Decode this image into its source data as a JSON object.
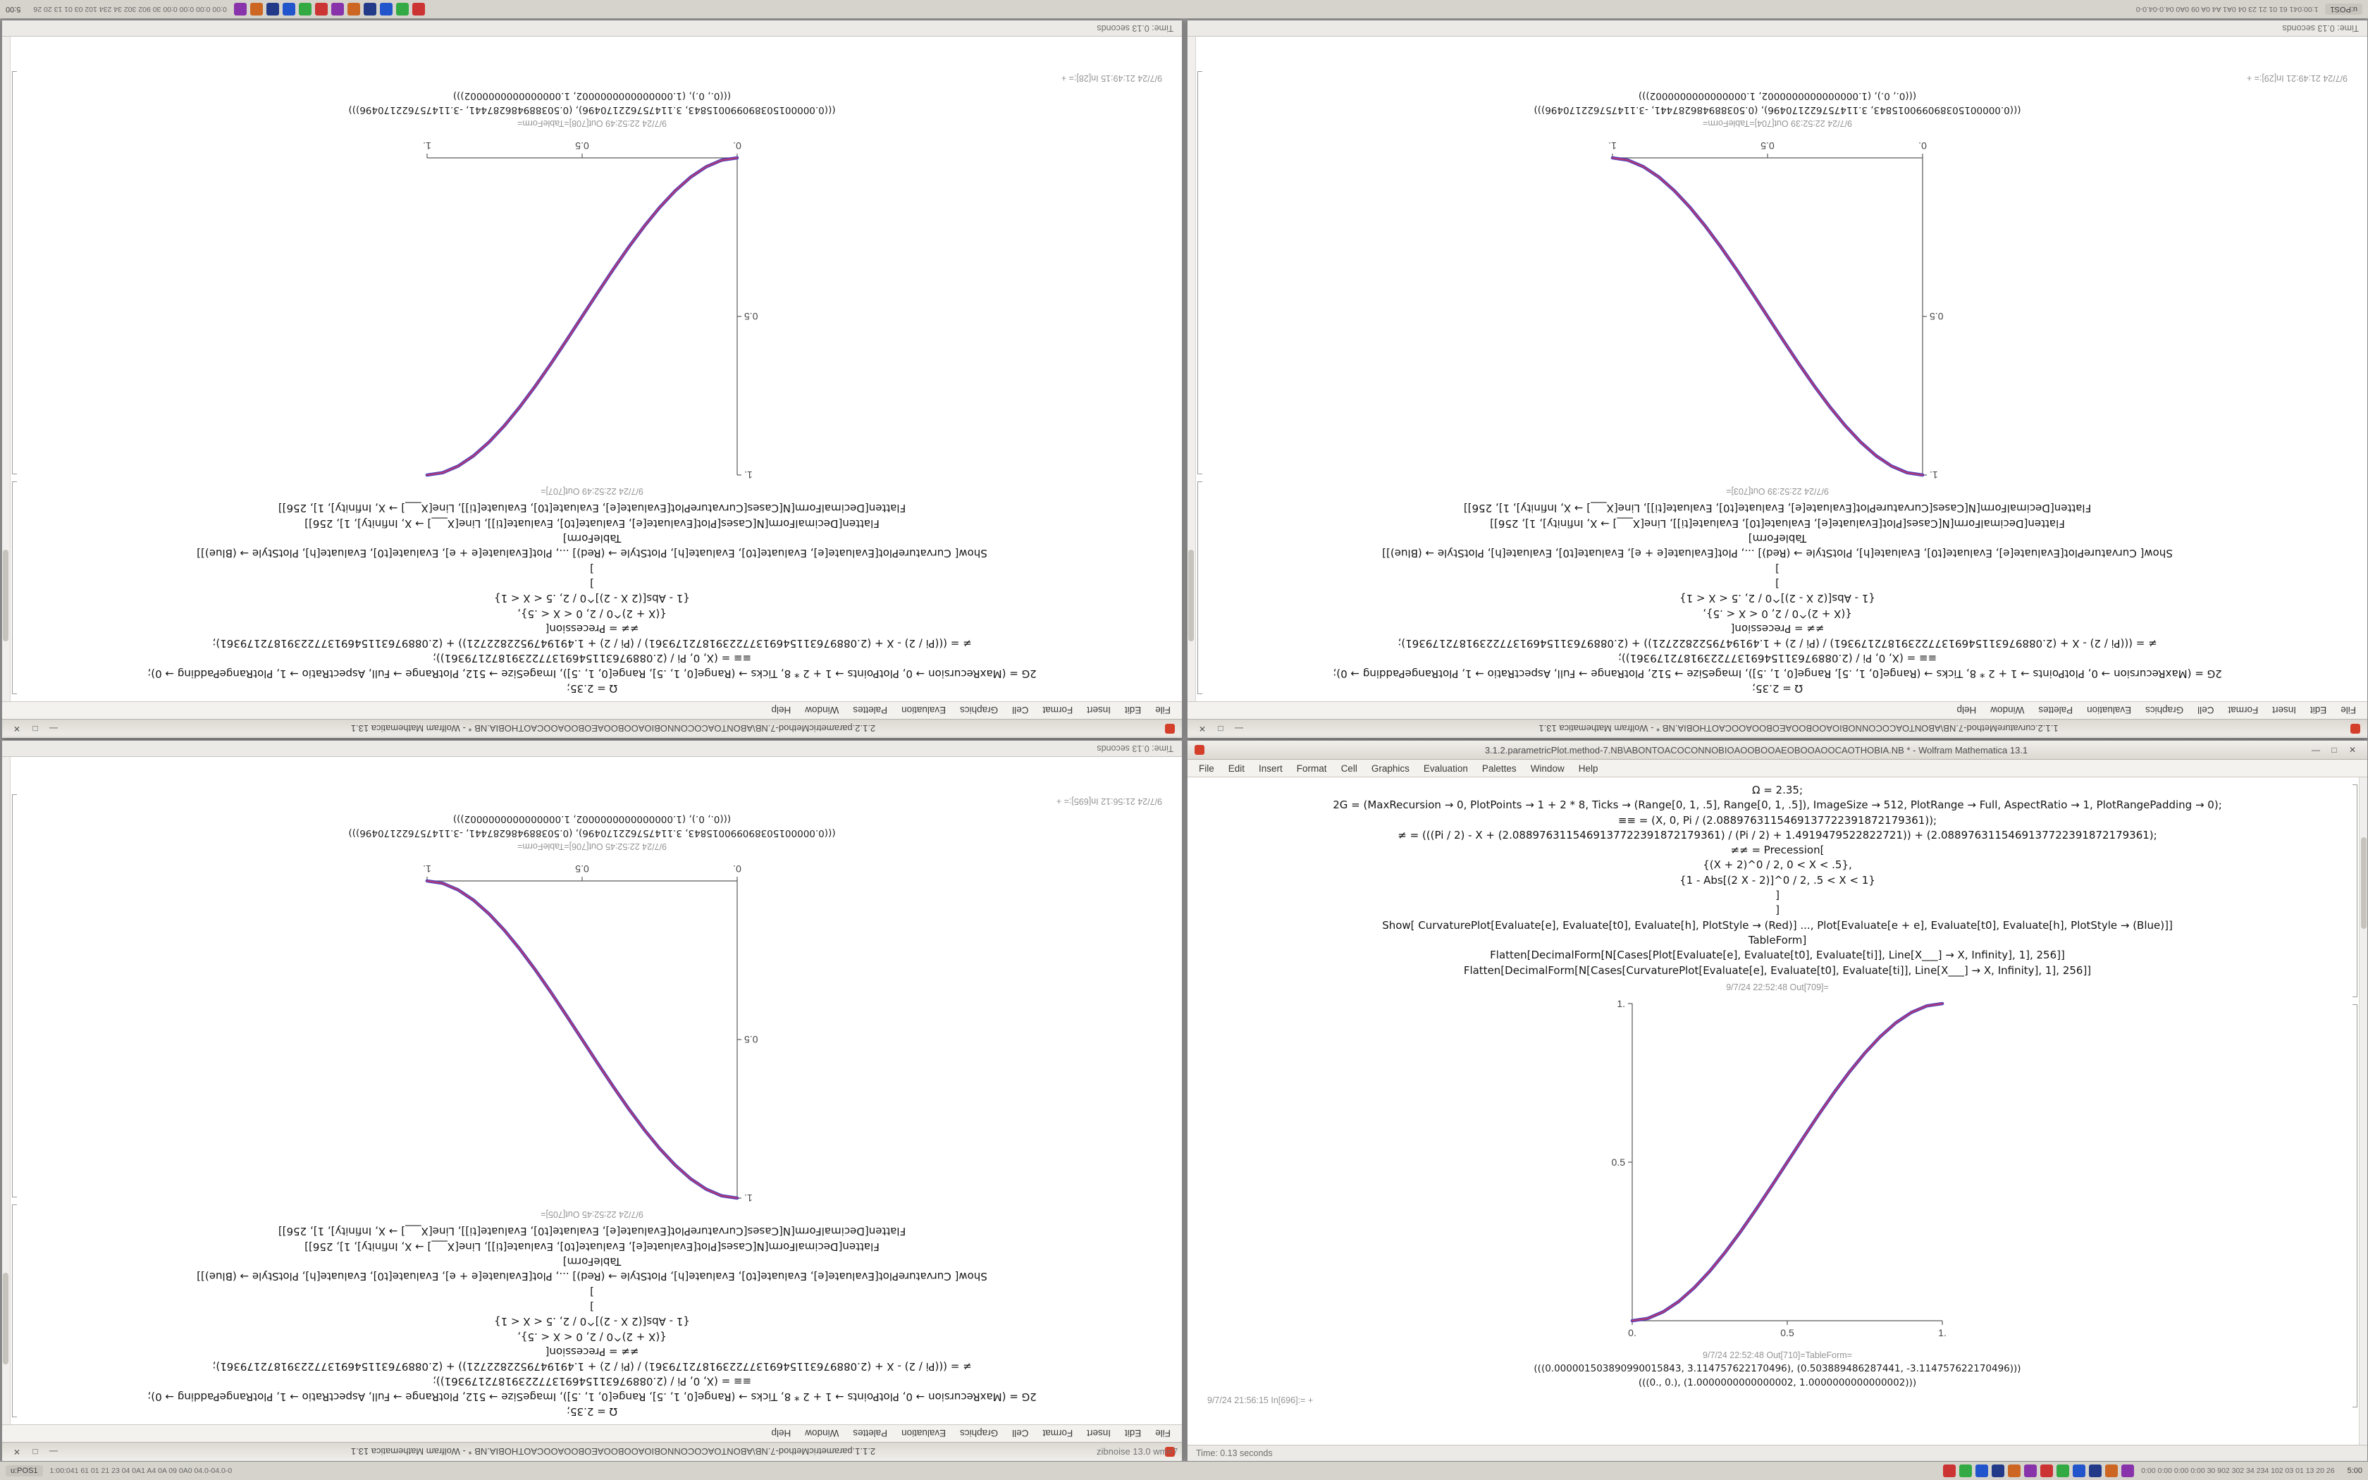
{
  "desktop": {
    "background": "#9c9c9c"
  },
  "window_chrome": {
    "minimize_glyph": "—",
    "maximize_glyph": "□",
    "close_glyph": "✕",
    "accent": "#d33f2a"
  },
  "menu_items": [
    "File",
    "Edit",
    "Insert",
    "Format",
    "Cell",
    "Graphics",
    "Evaluation",
    "Palettes",
    "Window",
    "Help"
  ],
  "taskbar": {
    "start_label": "u:POS1",
    "left_text": "1:00:041 61 01 21 23 04 0A1 A4 0A 09 0A0 04.0-04.0-0",
    "icon_colors": [
      "#cc3333",
      "#33aa44",
      "#2255cc",
      "#223a88",
      "#cc6622",
      "#8833aa",
      "#cc3333",
      "#33aa44",
      "#2255cc",
      "#223a88",
      "#cc6622",
      "#8833aa"
    ],
    "tray_text": "0:00 0:00 0:00 0:00 30 902 302 34 234 102 03 01 13 20 26",
    "clock": "5:00"
  },
  "status_strip": {
    "kernel_label": "zibnoise 13.0 wm=7",
    "time_label": "Time: 0.13 seconds"
  },
  "windows": [
    {
      "id": "top-left",
      "title": "2.1.2.parametricMethod-7.NB\\ABONTOACOCONNOBIOAOOBOOAEOBOOAOOCAOTHOBIA.NB * - Wolfram Mathematica 13.1",
      "code_lines": [
        "Ω = 2.35;",
        "2G = (MaxRecursion → 0, PlotPoints → 1 + 2 * 8, Ticks → (Range[0, 1, .5], Range[0, 1, .5]), ImageSize → 512, PlotRange → Full, AspectRatio → 1, PlotRangePadding → 0);",
        "≡≡ = (X, 0, Pi / (2.0889763115469137722391872179361));",
        "≠ = (((Pi / 2) - X + (2.0889763115469137722391872179361) / (Pi / 2) + 1.4919479522822721)) + (2.0889763115469137722391872179361);",
        "≠≠ = Precession[",
        "{(X + 2)^0 / 2, 0 < X < .5},",
        "{1 - Abs[(2 X - 2)]^0 / 2, .5 < X < 1}",
        "]",
        "]",
        "Show[  CurvaturePlot[Evaluate[e], Evaluate[t0], Evaluate[h],  PlotStyle → (Red)] ...,  Plot[Evaluate[e + e], Evaluate[t0], Evaluate[h],  PlotStyle → (Blue)]]",
        "TableForm]",
        "Flatten[DecimalForm[N[Cases[Plot[Evaluate[e], Evaluate[t0], Evaluate[ti]], Line[X___] → X, Infinity], 1], 256]]",
        "Flatten[DecimalForm[N[Cases[CurvaturePlot[Evaluate[e], Evaluate[t0], Evaluate[ti]], Line[X___] → X, Infinity], 1], 256]]"
      ],
      "out_plot_label": "9/7/24 22:52:49 Out[707]=",
      "out_table_label": "9/7/24 22:52:49 Out[708]=TableForm=",
      "out_values": [
        "(((0.000001503890990015843, 3.114757622170496), (0.503889486287441, -3.114757622170496)))",
        "(((0., 0.), (1.0000000000000002, 1.0000000000000002)))"
      ],
      "trailing_label": "9/7/24 21:49:15 In[28]:=   +",
      "status_text": "Time: 0.13 seconds"
    },
    {
      "id": "top-right",
      "title": "1.1.2.curvatureMethod-7.NB\\ABONTOACOCONNOBIOAOOBOOAEOBOOAOOCAOTHOBIA.NB * - Wolfram Mathematica 13.1",
      "code_lines": [
        "Ω = 2.35;",
        "2G = (MaxRecursion → 0, PlotPoints → 1 + 2 * 8, Ticks → (Range[0, 1, .5], Range[0, 1, .5]), ImageSize → 512, PlotRange → Full, AspectRatio → 1, PlotRangePadding → 0);",
        "≡≡ = (X, 0, Pi / (2.0889763115469137722391872179361));",
        "≠ = (((Pi / 2) - X + (2.0889763115469137722391872179361) / (Pi / 2) + 1.4919479522822721)) + (2.0889763115469137722391872179361);",
        "≠≠ = Precession[",
        "{(X + 2)^0 / 2, 0 < X < .5},",
        "{1 - Abs[(2 X - 2)]^0 / 2, .5 < X < 1}",
        "]",
        "]",
        "Show[  CurvaturePlot[Evaluate[e], Evaluate[t0], Evaluate[h],  PlotStyle → (Red)] ...,  Plot[Evaluate[e + e], Evaluate[t0], Evaluate[h],  PlotStyle → (Blue)]]",
        "TableForm]",
        "Flatten[DecimalForm[N[Cases[Plot[Evaluate[e], Evaluate[t0], Evaluate[ti]], Line[X___] → X, Infinity], 1], 256]]",
        "Flatten[DecimalForm[N[Cases[CurvaturePlot[Evaluate[e], Evaluate[t0], Evaluate[ti]], Line[X___] → X, Infinity], 1], 256]]"
      ],
      "out_plot_label": "9/7/24 22:52:39 Out[703]=",
      "out_table_label": "9/7/24 22:52:39 Out[704]=TableForm=",
      "out_values": [
        "(((0.000001503890990015843, 3.114757622170496), (0.503889486287441, -3.114757622170496)))",
        "(((0., 0.), (1.0000000000000002, 1.0000000000000002)))"
      ],
      "trailing_label": "9/7/24 21:49:21 In[29]:=   +",
      "status_text": "Time: 0.13 seconds"
    },
    {
      "id": "bottom-left",
      "title": "2.1.1.parametricMethod-7.NB\\ABONTOACOCONNOBIOAOOBOOAEOBOOAOOCAOTHOBIA.NB * - Wolfram Mathematica 13.1",
      "code_lines": [
        "Ω = 2.35;",
        "2G = (MaxRecursion → 0, PlotPoints → 1 + 2 * 8, Ticks → (Range[0, 1, .5], Range[0, 1, .5]), ImageSize → 512, PlotRange → Full, AspectRatio → 1, PlotRangePadding → 0);",
        "≡≡ = (X, 0, Pi / (2.0889763115469137722391872179361));",
        "≠ = (((Pi / 2) - X + (2.0889763115469137722391872179361) / (Pi / 2) + 1.4919479522822721)) + (2.0889763115469137722391872179361);",
        "≠≠ = Precession[",
        "{(X + 2)^0 / 2, 0 < X < .5},",
        "{1 - Abs[(2 X - 2)]^0 / 2, .5 < X < 1}",
        "]",
        "]",
        "Show[  CurvaturePlot[Evaluate[e], Evaluate[t0], Evaluate[h],  PlotStyle → (Red)] ...,  Plot[Evaluate[e + e], Evaluate[t0], Evaluate[h],  PlotStyle → (Blue)]]",
        "TableForm]",
        "Flatten[DecimalForm[N[Cases[Plot[Evaluate[e], Evaluate[t0], Evaluate[ti]], Line[X___] → X, Infinity], 1], 256]]",
        "Flatten[DecimalForm[N[Cases[CurvaturePlot[Evaluate[e], Evaluate[t0], Evaluate[ti]], Line[X___] → X, Infinity], 1], 256]]"
      ],
      "out_plot_label": "9/7/24 22:52:45 Out[705]=",
      "out_table_label": "9/7/24 22:52:45 Out[706]=TableForm=",
      "out_values": [
        "(((0.000001503890990015843, 3.114757622170496), (0.503889486287441, -3.114757622170496)))",
        "(((0., 0.), (1.0000000000000002, 1.0000000000000002)))"
      ],
      "trailing_label": "9/7/24 21:56:12 In[695]:=   +",
      "status_text": "Time: 0.13 seconds"
    },
    {
      "id": "bottom-right",
      "title": "3.1.2.parametricPlot.method-7.NB\\ABONTOACOCONNOBIOAOOBOOAEOBOOAOOCAOTHOBIA.NB * - Wolfram Mathematica 13.1",
      "code_lines": [
        "Ω = 2.35;",
        "2G = (MaxRecursion → 0, PlotPoints → 1 + 2 * 8, Ticks → (Range[0, 1, .5], Range[0, 1, .5]), ImageSize → 512, PlotRange → Full, AspectRatio → 1, PlotRangePadding → 0);",
        "≡≡ = (X, 0, Pi / (2.0889763115469137722391872179361));",
        "≠ = (((Pi / 2) - X + (2.0889763115469137722391872179361) / (Pi / 2) + 1.4919479522822721)) + (2.0889763115469137722391872179361);",
        "≠≠ = Precession[",
        "{(X + 2)^0 / 2, 0 < X < .5},",
        "{1 - Abs[(2 X - 2)]^0 / 2, .5 < X < 1}",
        "]",
        "]",
        "Show[  CurvaturePlot[Evaluate[e], Evaluate[t0], Evaluate[h],  PlotStyle → (Red)] ...,  Plot[Evaluate[e + e], Evaluate[t0], Evaluate[h],  PlotStyle → (Blue)]]",
        "TableForm]",
        "Flatten[DecimalForm[N[Cases[Plot[Evaluate[e], Evaluate[t0], Evaluate[ti]], Line[X___] → X, Infinity], 1], 256]]",
        "Flatten[DecimalForm[N[Cases[CurvaturePlot[Evaluate[e], Evaluate[t0], Evaluate[ti]], Line[X___] → X, Infinity], 1], 256]]"
      ],
      "out_plot_label": "9/7/24 22:52:48 Out[709]=",
      "out_table_label": "9/7/24 22:52:48 Out[710]=TableForm=",
      "out_values": [
        "(((0.000001503890990015843, 3.114757622170496), (0.503889486287441, -3.114757622170496)))",
        "(((0., 0.), (1.0000000000000002, 1.0000000000000002)))"
      ],
      "trailing_label": "9/7/24 21:56:15 In[696]:=   +",
      "status_text": "Time: 0.13 seconds"
    }
  ],
  "chart_data": [
    {
      "window": "top-left",
      "type": "line",
      "title": "",
      "xlabel": "",
      "ylabel": "",
      "direction": "ascending",
      "grid": false,
      "legend": "none",
      "xlim": [
        0,
        1
      ],
      "ylim": [
        0,
        1
      ],
      "xticks": [
        0,
        0.5,
        1
      ],
      "yticks": [
        0.5,
        1
      ],
      "tick_labels_x": [
        "0.",
        "0.5",
        "1."
      ],
      "tick_labels_y": [
        "0.5",
        "1."
      ],
      "x": [
        0,
        0.05,
        0.1,
        0.15,
        0.2,
        0.25,
        0.3,
        0.35,
        0.4,
        0.45,
        0.5,
        0.55,
        0.6,
        0.65,
        0.7,
        0.75,
        0.8,
        0.85,
        0.9,
        0.95,
        1
      ],
      "series": [
        {
          "name": "Plot (Blue)",
          "color": "#4040c8",
          "y": [
            0,
            0.0073,
            0.028,
            0.0607,
            0.104,
            0.1562,
            0.216,
            0.2817,
            0.352,
            0.4253,
            0.5,
            0.5747,
            0.648,
            0.7183,
            0.784,
            0.8438,
            0.896,
            0.9393,
            0.972,
            0.9928,
            1
          ]
        },
        {
          "name": "CurvaturePlot (Red)",
          "color": "#c23a6a",
          "y": [
            0,
            0.0073,
            0.028,
            0.0607,
            0.104,
            0.1562,
            0.216,
            0.2817,
            0.352,
            0.4253,
            0.5,
            0.5747,
            0.648,
            0.7183,
            0.784,
            0.8438,
            0.896,
            0.9393,
            0.972,
            0.9928,
            1
          ]
        }
      ]
    },
    {
      "window": "top-right",
      "type": "line",
      "title": "",
      "xlabel": "",
      "ylabel": "",
      "direction": "descending",
      "grid": false,
      "legend": "none",
      "xlim": [
        0,
        1
      ],
      "ylim": [
        0,
        1
      ],
      "xticks": [
        0,
        0.5,
        1
      ],
      "yticks": [
        0.5,
        1
      ],
      "tick_labels_x": [
        "0.",
        "0.5",
        "1."
      ],
      "tick_labels_y": [
        "0.5",
        "1."
      ],
      "x": [
        0,
        0.05,
        0.1,
        0.15,
        0.2,
        0.25,
        0.3,
        0.35,
        0.4,
        0.45,
        0.5,
        0.55,
        0.6,
        0.65,
        0.7,
        0.75,
        0.8,
        0.85,
        0.9,
        0.95,
        1
      ],
      "series": [
        {
          "name": "Plot (Blue)",
          "color": "#4040c8",
          "y": [
            1,
            0.9928,
            0.972,
            0.9393,
            0.896,
            0.8438,
            0.784,
            0.7183,
            0.648,
            0.5747,
            0.5,
            0.4253,
            0.352,
            0.2817,
            0.216,
            0.1562,
            0.104,
            0.0607,
            0.028,
            0.0073,
            0
          ]
        },
        {
          "name": "CurvaturePlot (Red)",
          "color": "#c23a6a",
          "y": [
            1,
            0.9928,
            0.972,
            0.9393,
            0.896,
            0.8438,
            0.784,
            0.7183,
            0.648,
            0.5747,
            0.5,
            0.4253,
            0.352,
            0.2817,
            0.216,
            0.1562,
            0.104,
            0.0607,
            0.028,
            0.0073,
            0
          ]
        }
      ]
    },
    {
      "window": "bottom-left",
      "type": "line",
      "title": "",
      "xlabel": "",
      "ylabel": "",
      "direction": "descending",
      "grid": false,
      "legend": "none",
      "xlim": [
        0,
        1
      ],
      "ylim": [
        0,
        1
      ],
      "xticks": [
        0,
        0.5,
        1
      ],
      "yticks": [
        0.5,
        1
      ],
      "tick_labels_x": [
        "0.",
        "0.5",
        "1."
      ],
      "tick_labels_y": [
        "0.5",
        "1."
      ],
      "x": [
        0,
        0.05,
        0.1,
        0.15,
        0.2,
        0.25,
        0.3,
        0.35,
        0.4,
        0.45,
        0.5,
        0.55,
        0.6,
        0.65,
        0.7,
        0.75,
        0.8,
        0.85,
        0.9,
        0.95,
        1
      ],
      "series": [
        {
          "name": "Plot (Blue)",
          "color": "#4040c8",
          "y": [
            1,
            0.9928,
            0.972,
            0.9393,
            0.896,
            0.8438,
            0.784,
            0.7183,
            0.648,
            0.5747,
            0.5,
            0.4253,
            0.352,
            0.2817,
            0.216,
            0.1562,
            0.104,
            0.0607,
            0.028,
            0.0073,
            0
          ]
        },
        {
          "name": "CurvaturePlot (Red)",
          "color": "#c23a6a",
          "y": [
            1,
            0.9928,
            0.972,
            0.9393,
            0.896,
            0.8438,
            0.784,
            0.7183,
            0.648,
            0.5747,
            0.5,
            0.4253,
            0.352,
            0.2817,
            0.216,
            0.1562,
            0.104,
            0.0607,
            0.028,
            0.0073,
            0
          ]
        }
      ]
    },
    {
      "window": "bottom-right",
      "type": "line",
      "title": "",
      "xlabel": "",
      "ylabel": "",
      "direction": "ascending",
      "grid": false,
      "legend": "none",
      "xlim": [
        0,
        1
      ],
      "ylim": [
        0,
        1
      ],
      "xticks": [
        0,
        0.5,
        1
      ],
      "yticks": [
        0.5,
        1
      ],
      "tick_labels_x": [
        "0.",
        "0.5",
        "1."
      ],
      "tick_labels_y": [
        "0.5",
        "1."
      ],
      "x": [
        0,
        0.05,
        0.1,
        0.15,
        0.2,
        0.25,
        0.3,
        0.35,
        0.4,
        0.45,
        0.5,
        0.55,
        0.6,
        0.65,
        0.7,
        0.75,
        0.8,
        0.85,
        0.9,
        0.95,
        1
      ],
      "series": [
        {
          "name": "Plot (Blue)",
          "color": "#4040c8",
          "y": [
            0,
            0.0073,
            0.028,
            0.0607,
            0.104,
            0.1562,
            0.216,
            0.2817,
            0.352,
            0.4253,
            0.5,
            0.5747,
            0.648,
            0.7183,
            0.784,
            0.8438,
            0.896,
            0.9393,
            0.972,
            0.9928,
            1
          ]
        },
        {
          "name": "CurvaturePlot (Red)",
          "color": "#c23a6a",
          "y": [
            0,
            0.0073,
            0.028,
            0.0607,
            0.104,
            0.1562,
            0.216,
            0.2817,
            0.352,
            0.4253,
            0.5,
            0.5747,
            0.648,
            0.7183,
            0.784,
            0.8438,
            0.896,
            0.9393,
            0.972,
            0.9928,
            1
          ]
        }
      ]
    }
  ]
}
